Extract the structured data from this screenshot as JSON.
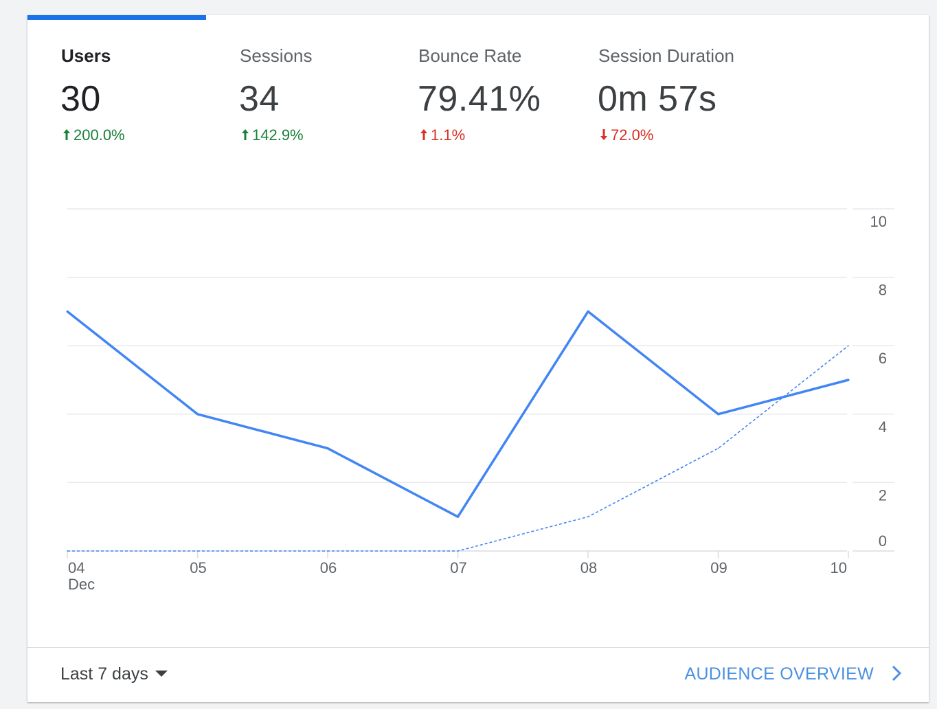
{
  "metrics": [
    {
      "label": "Users",
      "value": "30",
      "delta": "200.0%",
      "direction": "up",
      "good": true,
      "active": true
    },
    {
      "label": "Sessions",
      "value": "34",
      "delta": "142.9%",
      "direction": "up",
      "good": true,
      "active": false
    },
    {
      "label": "Bounce Rate",
      "value": "79.41%",
      "delta": "1.1%",
      "direction": "up",
      "good": false,
      "active": false
    },
    {
      "label": "Session Duration",
      "value": "0m 57s",
      "delta": "72.0%",
      "direction": "down",
      "good": false,
      "active": false
    }
  ],
  "colors": {
    "accent": "#1a73e8",
    "series_line": "#4285f4",
    "positive": "#188038",
    "negative": "#d93025",
    "link": "#4a90e2"
  },
  "chart_data": {
    "type": "line",
    "categories": [
      "04",
      "05",
      "06",
      "07",
      "08",
      "09",
      "10"
    ],
    "x_sublabel": "Dec",
    "series": [
      {
        "values": [
          7,
          4,
          3,
          1,
          7,
          4,
          5
        ],
        "style": "solid"
      },
      {
        "values": [
          0,
          0,
          0,
          0,
          1,
          3,
          6
        ],
        "style": "dashed"
      }
    ],
    "yticks": [
      10,
      8,
      6,
      4,
      2,
      0
    ],
    "ylim": [
      0,
      10
    ],
    "grid": true
  },
  "footer": {
    "date_range": "Last 7 days",
    "overview_link": "AUDIENCE OVERVIEW"
  }
}
